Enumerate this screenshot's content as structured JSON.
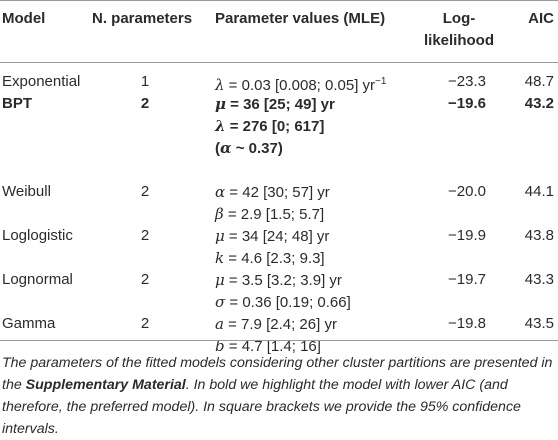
{
  "table": {
    "headers": {
      "model": "Model",
      "n_params": "N. parameters",
      "param_values": "Parameter values (MLE)",
      "loglik_1": "Log-",
      "loglik_2": "likelihood",
      "aic": "AIC"
    },
    "rows": [
      {
        "model": "Exponential",
        "n": "1",
        "params": [
          {
            "sym": "λ",
            "eq": " = 0.03 [0.008; 0.05] yr",
            "sup": "−1"
          }
        ],
        "loglik": "−23.3",
        "aic": "48.7"
      },
      {
        "model": "BPT",
        "n": "2",
        "params": [
          {
            "sym": "μ",
            "eq": " = 36 [25; 49] yr"
          },
          {
            "sym": "λ",
            "eq": " = 276 [0; 617]"
          },
          {
            "pre": "(",
            "sym": "α",
            "eq": " ~ 0.37)"
          }
        ],
        "loglik": "−19.6",
        "aic": "43.2",
        "bold": true
      },
      {
        "model": "Weibull",
        "n": "2",
        "params": [
          {
            "sym": "α",
            "eq": " = 42 [30; 57] yr"
          },
          {
            "sym": "β",
            "eq": " = 2.9 [1.5; 5.7]"
          }
        ],
        "loglik": "−20.0",
        "aic": "44.1"
      },
      {
        "model": "Loglogistic",
        "n": "2",
        "params": [
          {
            "sym": "μ",
            "eq": " = 34 [24; 48] yr"
          },
          {
            "sym": "k",
            "eq": " = 4.6 [2.3; 9.3]"
          }
        ],
        "loglik": "−19.9",
        "aic": "43.8"
      },
      {
        "model": "Lognormal",
        "n": "2",
        "params": [
          {
            "sym": "μ",
            "eq": " = 3.5 [3.2; 3.9] yr"
          },
          {
            "sym": "σ",
            "eq": " = 0.36 [0.19; 0.66]"
          }
        ],
        "loglik": "−19.7",
        "aic": "43.3"
      },
      {
        "model": "Gamma",
        "n": "2",
        "params": [
          {
            "sym": "a",
            "eq": " = 7.9 [2.4; 26] yr"
          },
          {
            "sym": "b",
            "eq": " = 4.7 [1.4; 16]"
          }
        ],
        "loglik": "−19.8",
        "aic": "43.5"
      }
    ]
  },
  "caption": {
    "part1": "The parameters of the fitted models considering other cluster partitions are presented in the ",
    "strong": "Supplementary Material",
    "part2": ". In bold we highlight the model with lower AIC (and therefore, the preferred model). In square brackets we provide the 95% confidence intervals."
  }
}
